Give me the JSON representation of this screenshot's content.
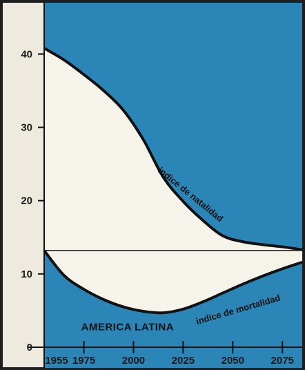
{
  "chart_data": {
    "type": "area",
    "title": "AMERICA LATINA",
    "xlabel": "",
    "ylabel": "",
    "x_ticks": [
      1955,
      1975,
      2000,
      2025,
      2050,
      2075
    ],
    "x_tick_labels": [
      "1955",
      "1975",
      "2000",
      "2025",
      "2050",
      "2075"
    ],
    "xlim": [
      1955,
      2085
    ],
    "y_ticks": [
      0,
      10,
      20,
      30,
      40
    ],
    "y_tick_labels": [
      "0",
      "10",
      "20",
      "30",
      "40"
    ],
    "ylim": [
      0,
      47
    ],
    "horizontal_reference": 13.2,
    "grid": false,
    "legend": "none",
    "colors": {
      "fill": "#2b86b7",
      "paper": "#f6f3ea",
      "ink": "#111111"
    },
    "series": [
      {
        "name": "indice de natalidad",
        "x": [
          1955,
          1965,
          1975,
          1985,
          1995,
          2005,
          2015,
          2025,
          2035,
          2045,
          2055,
          2065,
          2075,
          2085
        ],
        "y": [
          40.8,
          39.2,
          37.2,
          35.0,
          32.3,
          28.3,
          23.2,
          19.9,
          17.3,
          15.2,
          14.4,
          14.0,
          13.7,
          13.3
        ]
      },
      {
        "name": "indice de mortalidad",
        "x": [
          1955,
          1965,
          1975,
          1985,
          1995,
          2005,
          2015,
          2025,
          2035,
          2045,
          2055,
          2065,
          2075,
          2085
        ],
        "y": [
          13.2,
          9.8,
          7.9,
          6.5,
          5.5,
          4.9,
          4.7,
          5.2,
          6.2,
          7.4,
          8.6,
          9.7,
          10.7,
          11.6
        ]
      }
    ]
  }
}
